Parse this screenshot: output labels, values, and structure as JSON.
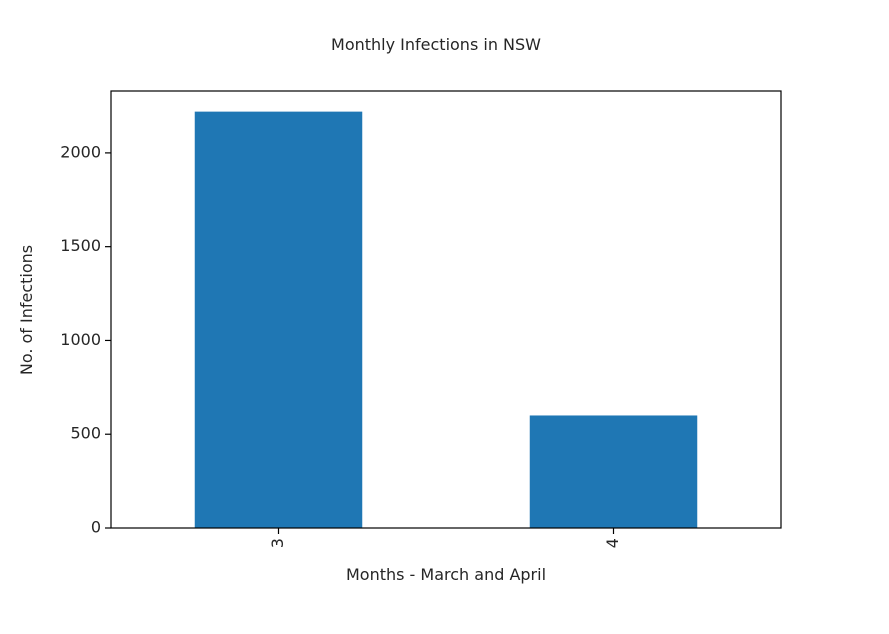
{
  "chart_data": {
    "type": "bar",
    "title": "Monthly Infections in NSW",
    "xlabel": "Months - March and April",
    "ylabel": "No. of Infections",
    "categories": [
      "3",
      "4"
    ],
    "values": [
      2220,
      600
    ],
    "ylim": [
      0,
      2330
    ],
    "yticks": [
      0,
      500,
      1000,
      1500,
      2000
    ],
    "grid": false,
    "legend": null,
    "bar_color": "#1f77b4",
    "xtick_rotation": "vertical"
  }
}
